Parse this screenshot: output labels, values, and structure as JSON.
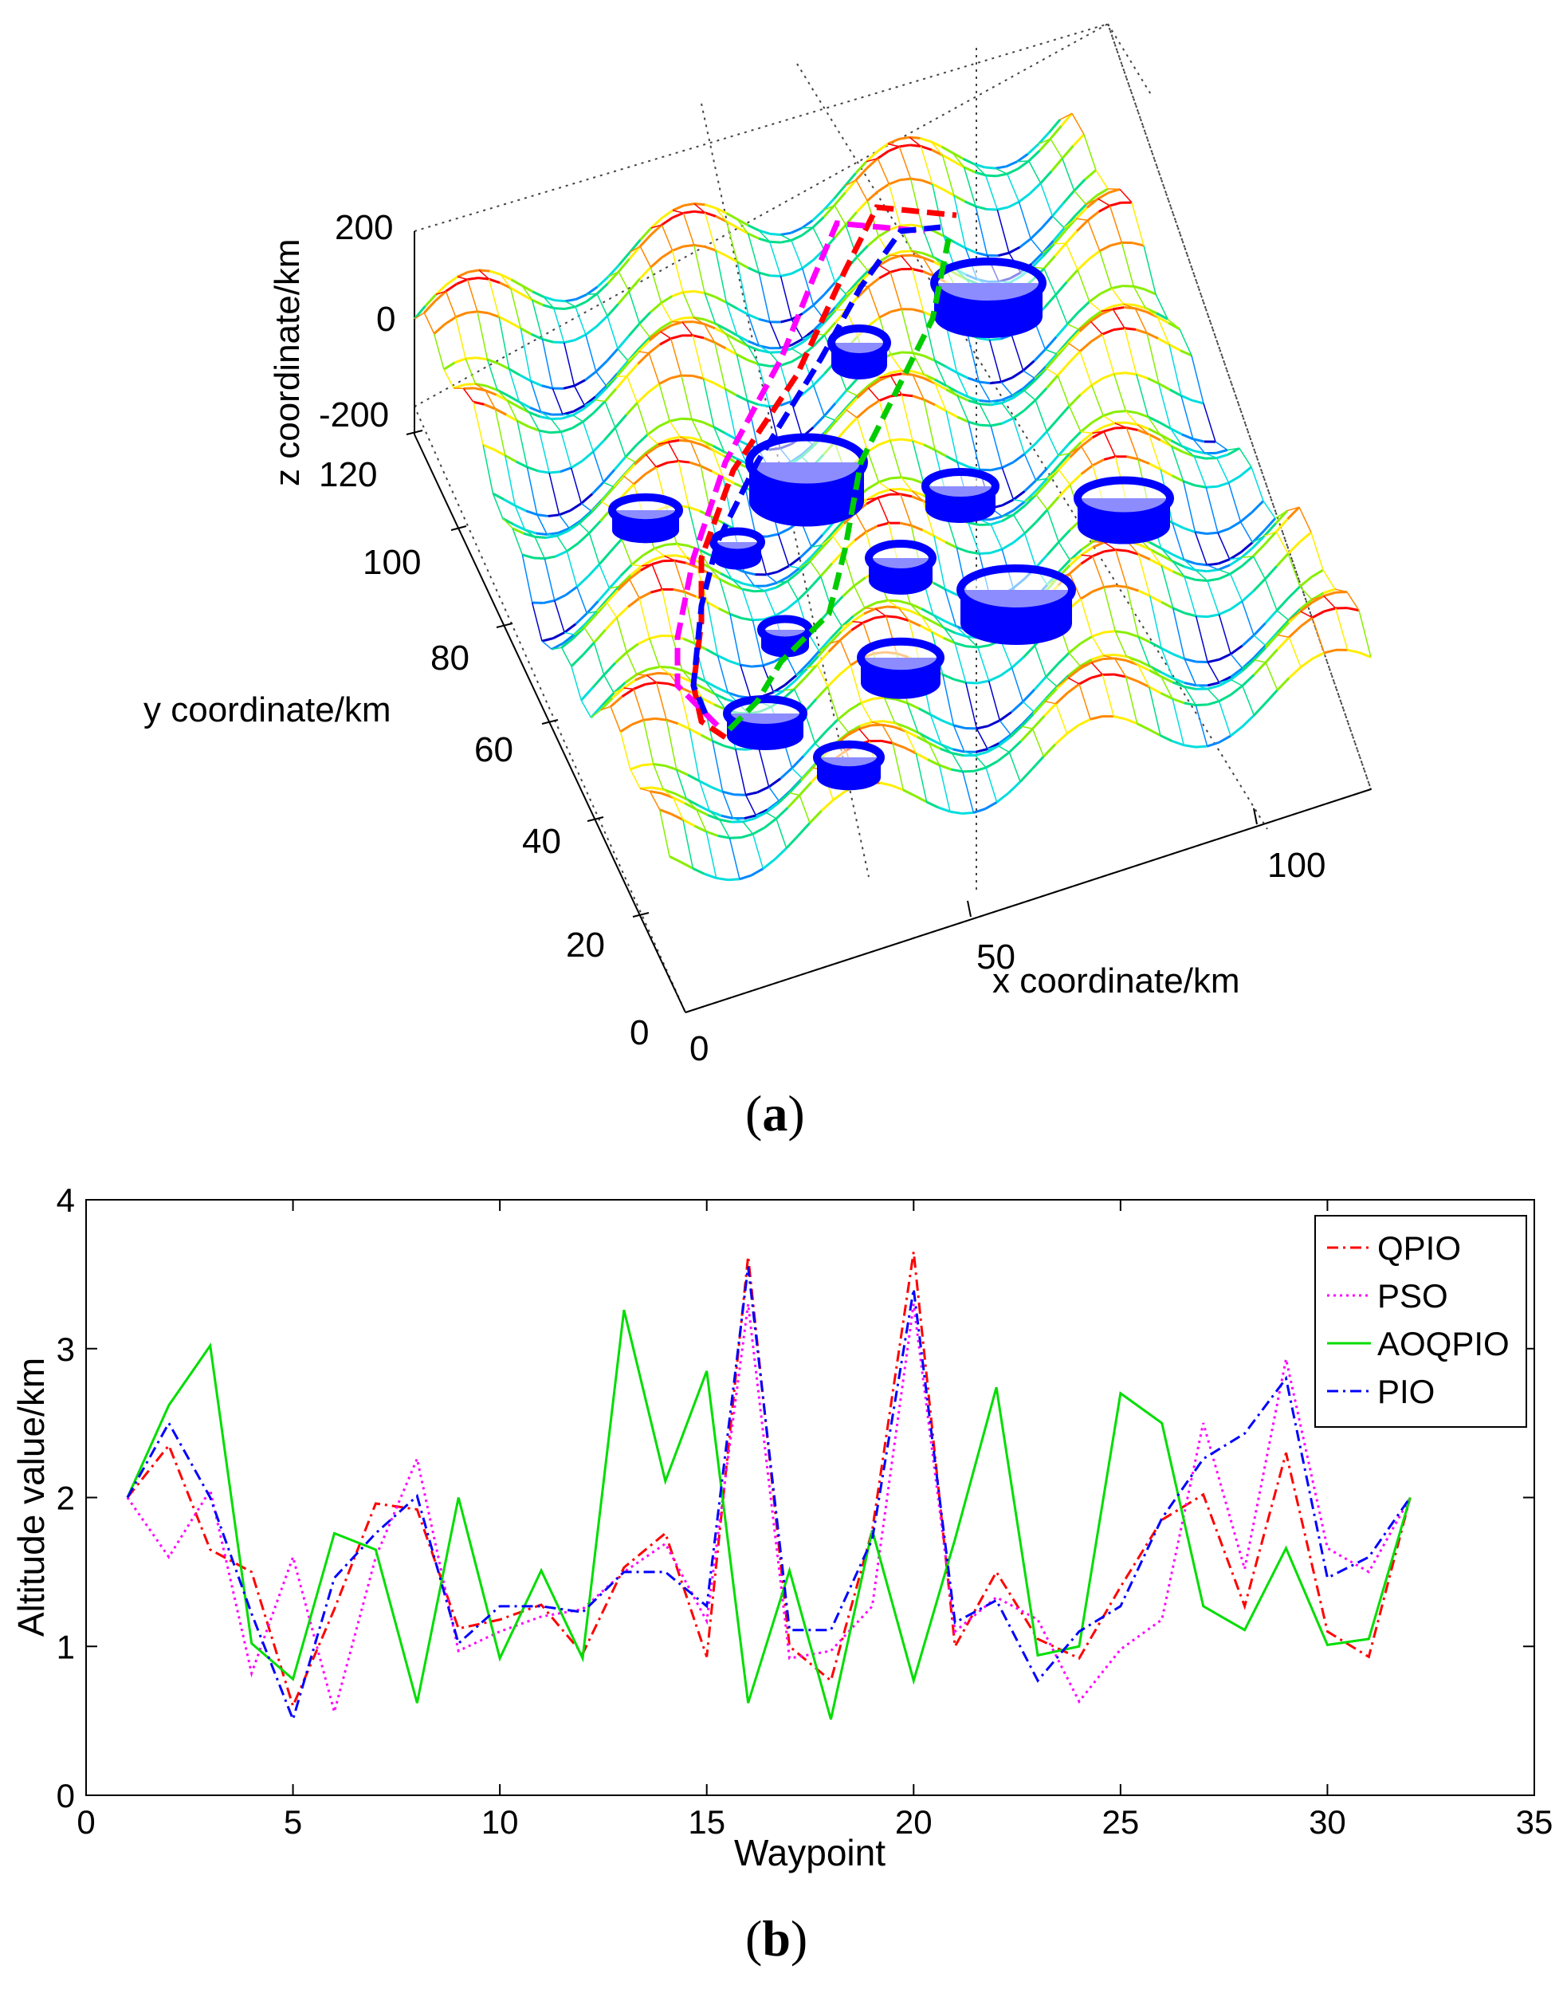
{
  "panel_a": {
    "label": "a",
    "z_axis_label": "z coordinate/km",
    "y_axis_label": "y coordinate/km",
    "x_axis_label": "x coordinate/km",
    "z_ticks": [
      "200",
      "0",
      "-200"
    ],
    "y_ticks": [
      "120",
      "100",
      "80",
      "60",
      "40",
      "20",
      "0"
    ],
    "x_ticks": [
      "0",
      "50",
      "100"
    ],
    "colors": {
      "paths": [
        "#ff0000",
        "#ff00ff",
        "#0000ff",
        "#00cc00"
      ],
      "obstacle": "#0000ff"
    }
  },
  "panel_b": {
    "label": "b"
  },
  "chart_data": [
    {
      "type": "3d-surface",
      "xlabel": "x coordinate/km",
      "ylabel": "y coordinate/km",
      "zlabel": "z coordinate/km",
      "xlim": [
        0,
        120
      ],
      "ylim": [
        0,
        120
      ],
      "zlim": [
        -200,
        200
      ],
      "x_ticks": [
        0,
        50,
        100
      ],
      "y_ticks": [
        0,
        20,
        40,
        60,
        80,
        100,
        120
      ],
      "z_ticks": [
        -200,
        0,
        200
      ],
      "grid": true
    },
    {
      "type": "line",
      "xlabel": "Waypoint",
      "ylabel": "Altitude value/km",
      "xlim": [
        0,
        35
      ],
      "ylim": [
        0,
        4
      ],
      "x_ticks": [
        0,
        5,
        10,
        15,
        20,
        25,
        30,
        35
      ],
      "y_ticks": [
        0,
        1,
        2,
        3,
        4
      ],
      "legend_position": "top-right",
      "x": [
        1,
        2,
        3,
        4,
        5,
        6,
        7,
        8,
        9,
        10,
        11,
        12,
        13,
        14,
        15,
        16,
        17,
        18,
        19,
        20,
        21,
        22,
        23,
        24,
        25,
        26,
        27,
        28,
        29,
        30,
        31,
        32
      ],
      "series": [
        {
          "name": "QPIO",
          "color": "#ff0000",
          "style": "dash-dot",
          "values": [
            2.0,
            2.35,
            1.65,
            1.5,
            0.6,
            1.25,
            1.96,
            1.92,
            1.12,
            1.18,
            1.28,
            0.95,
            1.53,
            1.76,
            0.93,
            3.62,
            1.0,
            0.77,
            1.78,
            3.65,
            1.0,
            1.5,
            1.05,
            0.92,
            1.4,
            1.85,
            2.02,
            1.27,
            2.3,
            1.1,
            0.93,
            2.0
          ]
        },
        {
          "name": "PSO",
          "color": "#ff00ff",
          "style": "dotted",
          "values": [
            2.0,
            1.6,
            2.05,
            0.82,
            1.6,
            0.56,
            1.6,
            2.26,
            0.97,
            1.1,
            1.2,
            1.25,
            1.5,
            1.69,
            1.17,
            3.3,
            0.92,
            0.97,
            1.27,
            3.3,
            1.1,
            1.33,
            1.18,
            0.63,
            0.98,
            1.18,
            2.5,
            1.52,
            2.93,
            1.66,
            1.5,
            2.0
          ]
        },
        {
          "name": "AOQPIO",
          "color": "#00dd00",
          "style": "solid",
          "values": [
            2.0,
            2.62,
            3.02,
            1.02,
            0.78,
            1.76,
            1.65,
            0.62,
            2.0,
            0.92,
            1.51,
            0.92,
            3.26,
            2.11,
            2.85,
            0.62,
            1.51,
            0.51,
            1.78,
            0.77,
            1.72,
            2.74,
            0.94,
            1.0,
            2.7,
            2.5,
            1.27,
            1.11,
            1.66,
            1.01,
            1.05,
            2.0
          ]
        },
        {
          "name": "PIO",
          "color": "#0000ff",
          "style": "dash-dot",
          "values": [
            2.0,
            2.5,
            2.0,
            1.22,
            0.51,
            1.46,
            1.76,
            2.01,
            1.02,
            1.27,
            1.27,
            1.23,
            1.5,
            1.5,
            1.27,
            3.55,
            1.11,
            1.11,
            1.72,
            3.4,
            1.16,
            1.31,
            0.77,
            1.1,
            1.27,
            1.86,
            2.26,
            2.43,
            2.8,
            1.46,
            1.6,
            2.0
          ]
        }
      ]
    }
  ]
}
